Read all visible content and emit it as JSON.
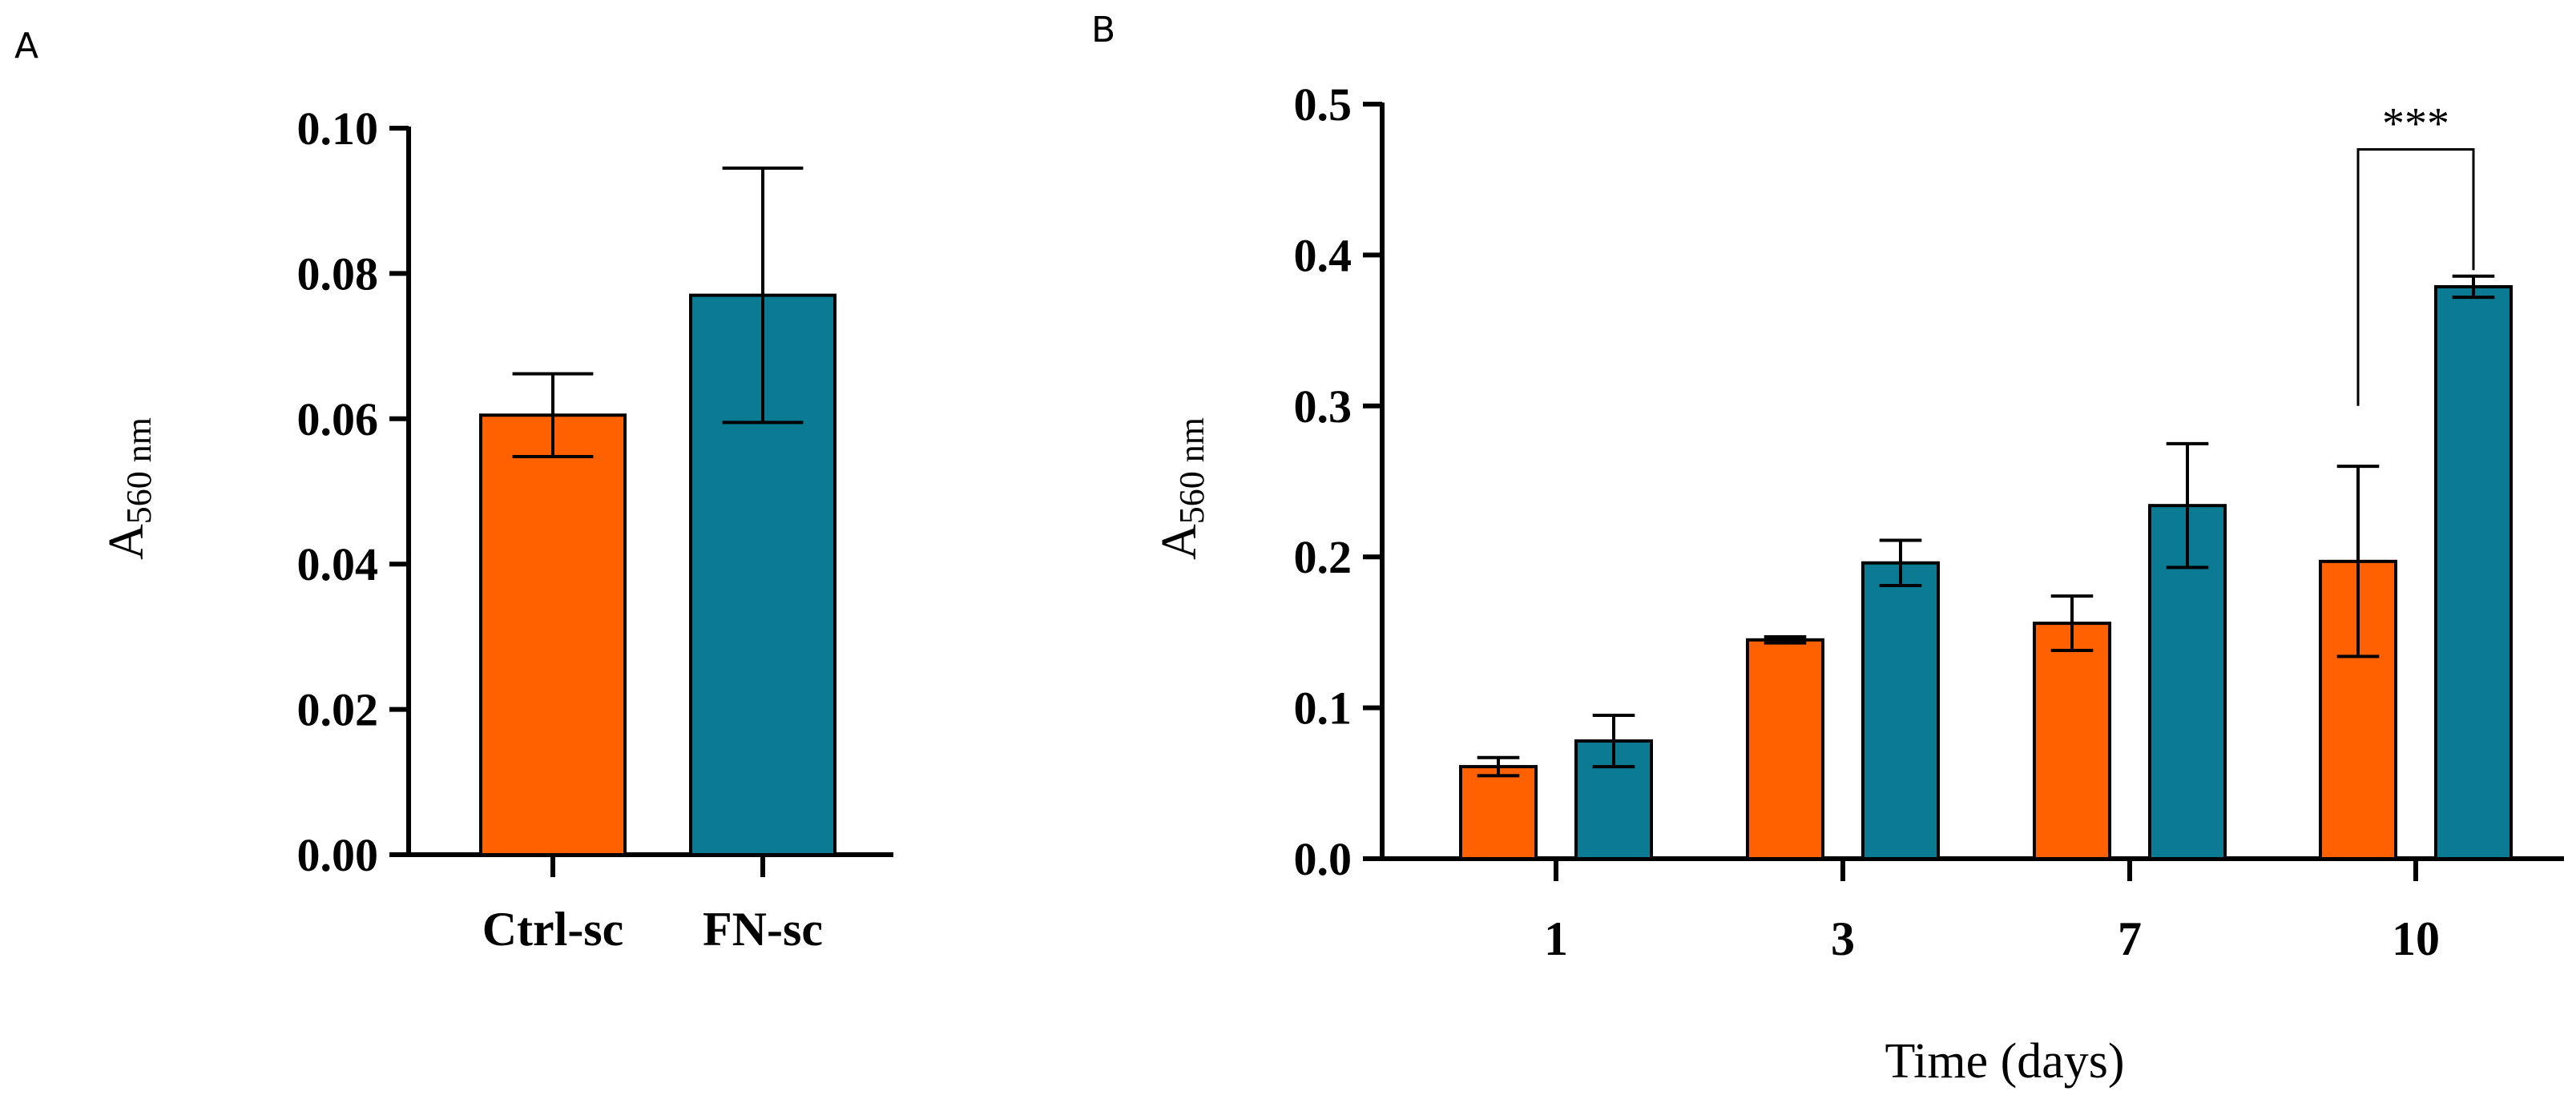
{
  "panels": {
    "a": {
      "label": "A"
    },
    "b": {
      "label": "B"
    }
  },
  "chart_data": [
    {
      "type": "bar",
      "panel": "A",
      "title": "",
      "xlabel": "",
      "ylabel_main": "A",
      "ylabel_sub": "560 nm",
      "ylim": [
        0,
        0.1
      ],
      "yticks": [
        "0.00",
        "0.02",
        "0.04",
        "0.06",
        "0.08",
        "0.10"
      ],
      "ytick_values": [
        0,
        0.02,
        0.04,
        0.06,
        0.08,
        0.1
      ],
      "categories": [
        "Ctrl-sc",
        "FN-sc"
      ],
      "values": [
        0.0605,
        0.077
      ],
      "errors": [
        0.0057,
        0.0175
      ],
      "colors": [
        "#ff6000",
        "#0b7b94"
      ]
    },
    {
      "type": "bar",
      "panel": "B",
      "title": "",
      "xlabel": "Time (days)",
      "ylabel_main": "A",
      "ylabel_sub": "560 nm",
      "ylim": [
        0,
        0.5
      ],
      "yticks": [
        "0.0",
        "0.1",
        "0.2",
        "0.3",
        "0.4",
        "0.5"
      ],
      "ytick_values": [
        0,
        0.1,
        0.2,
        0.3,
        0.4,
        0.5
      ],
      "categories": [
        "1",
        "3",
        "7",
        "10"
      ],
      "series": [
        {
          "name": "Ctrl-sc",
          "color": "#ff6000",
          "values": [
            0.061,
            0.145,
            0.156,
            0.197
          ],
          "errors": [
            0.006,
            0.002,
            0.018,
            0.063
          ]
        },
        {
          "name": "FN-sc",
          "color": "#0b7b94",
          "values": [
            0.078,
            0.196,
            0.234,
            0.379
          ],
          "errors": [
            0.017,
            0.015,
            0.041,
            0.007
          ]
        }
      ],
      "significance": {
        "category": "10",
        "label": "***",
        "bracket_y": 0.47,
        "left_bottom": 0.3,
        "right_bottom": 0.39
      }
    }
  ]
}
